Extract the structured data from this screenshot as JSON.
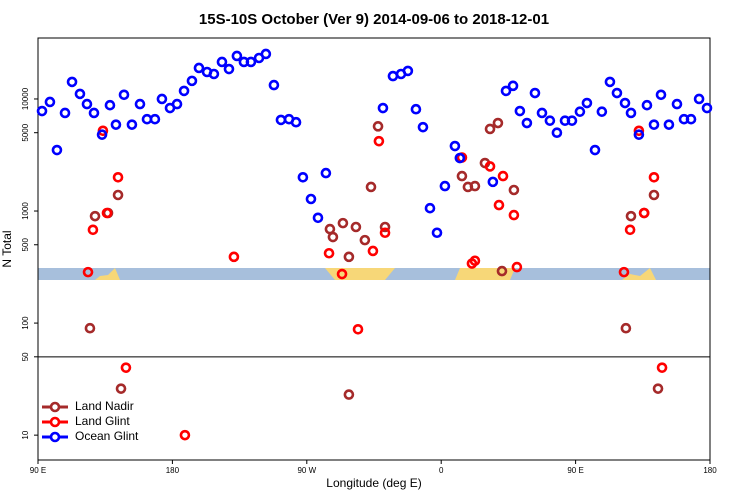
{
  "chart_data": {
    "type": "scatter",
    "title": "15S-10S October (Ver 9)   2014-09-06 to 2018-12-01",
    "x_label": "Longitude (deg E)",
    "y_label": "N Total",
    "log_y": true,
    "legend": "bottom-left",
    "separator_line": 50,
    "xlim": [
      90,
      540
    ],
    "ylim": [
      6,
      35000
    ],
    "xticks": [
      {
        "value": 90,
        "label": "90 E"
      },
      {
        "value": 180,
        "label": "180"
      },
      {
        "value": 270,
        "label": "90 W"
      },
      {
        "value": 360,
        "label": "0"
      },
      {
        "value": 450,
        "label": "90 E"
      },
      {
        "value": 540,
        "label": "180"
      }
    ],
    "yticks": [
      10,
      50,
      100,
      500,
      1000,
      5000,
      10000
    ],
    "series": [
      {
        "name": "Land Nadir",
        "color": "#a52a2a",
        "x": [
          124.8,
          128.2,
          136.9,
          143.6,
          145.6,
          285.5,
          287.5,
          294.2,
          298.2,
          298.2,
          302.9,
          308.9,
          313,
          317.7,
          322.4,
          373.9,
          377.9,
          382.6,
          389.3,
          392.7,
          398,
          400.7,
          408.7,
          483.7,
          487.1,
          495.9,
          502.5,
          505.2
        ],
        "values": [
          90,
          900,
          960,
          1390,
          26,
          690,
          586,
          780,
          390,
          23,
          720,
          550,
          1640,
          5700,
          720,
          2050,
          1640,
          1670,
          2680,
          5400,
          6100,
          291,
          1540,
          90,
          900,
          960,
          1390,
          26
        ]
      },
      {
        "name": "Land Glint",
        "color": "#ff0000",
        "x": [
          123.5,
          126.8,
          133.5,
          136.2,
          143.6,
          148.9,
          188.4,
          221.2,
          284.9,
          293.6,
          304.3,
          314.3,
          318.3,
          322.4,
          373.9,
          380.6,
          382.6,
          392.7,
          398.7,
          401.4,
          408.7,
          410.7,
          482.4,
          486.5,
          492.4,
          495.9,
          502.5,
          507.9
        ],
        "values": [
          285,
          680,
          5200,
          960,
          2000,
          40,
          10,
          390,
          420,
          274,
          88,
          440,
          4200,
          640,
          3000,
          340,
          360,
          2500,
          1130,
          2050,
          920,
          316,
          285,
          680,
          5200,
          960,
          2000,
          40
        ]
      },
      {
        "name": "Ocean Glint",
        "color": "#0000ff",
        "x": [
          92.7,
          98,
          102.7,
          108.1,
          112.8,
          118.1,
          122.8,
          127.5,
          132.9,
          138.2,
          142.2,
          147.6,
          152.9,
          158.3,
          163,
          168.3,
          173,
          178.4,
          183.1,
          187.8,
          193.1,
          197.8,
          203.2,
          207.8,
          213.2,
          217.9,
          223.2,
          227.9,
          232.6,
          238,
          242.6,
          248,
          252.7,
          258.1,
          262.8,
          267.4,
          272.8,
          277.5,
          282.8,
          321,
          327.7,
          333.1,
          337.7,
          343.1,
          347.8,
          352.5,
          357.2,
          362.5,
          369.2,
          372.5,
          394.6,
          403.4,
          408.1,
          412.7,
          417.4,
          422.8,
          427.5,
          432.8,
          437.5,
          442.9,
          447.6,
          452.9,
          457.6,
          463,
          467.6,
          473,
          477.7,
          483.1,
          487.1,
          492.4,
          497.8,
          502.5,
          507.2,
          512.5,
          517.9,
          522.6,
          527.3,
          532.7,
          538
        ],
        "values": [
          7800,
          9400,
          3500,
          7500,
          14200,
          11100,
          9000,
          7500,
          4800,
          8800,
          5900,
          10900,
          5900,
          9000,
          6600,
          6600,
          10000,
          8300,
          9000,
          11800,
          14500,
          18900,
          17400,
          16700,
          21400,
          18500,
          24200,
          21400,
          21400,
          23200,
          25200,
          13300,
          6500,
          6600,
          6200,
          2000,
          1280,
          870,
          2180,
          8300,
          16000,
          16700,
          17800,
          8100,
          5600,
          1060,
          640,
          1670,
          3800,
          2970,
          1820,
          11800,
          13100,
          7800,
          6100,
          11300,
          7500,
          6400,
          5000,
          6400,
          6400,
          7700,
          9200,
          3500,
          7700,
          14200,
          11300,
          9200,
          7500,
          4800,
          8800,
          5900,
          10900,
          5900,
          9000,
          6600,
          6600,
          10000,
          8300
        ]
      }
    ]
  }
}
